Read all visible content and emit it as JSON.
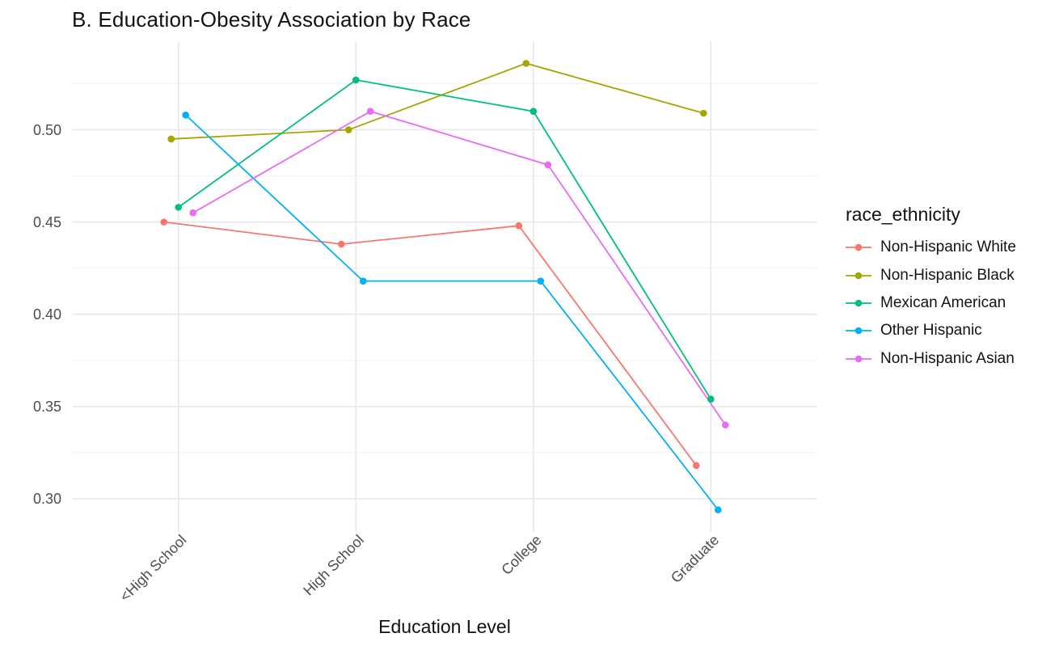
{
  "chart_data": {
    "type": "line",
    "title": "B. Education-Obesity Association by Race",
    "xlabel": "Education Level",
    "ylabel": "",
    "legend_title": "race_ethnicity",
    "legend_position": "right",
    "grid": true,
    "categories": [
      "<High School",
      "High School",
      "College",
      "Graduate"
    ],
    "series": [
      {
        "name": "Non-Hispanic White",
        "color": "#F8766D",
        "values": [
          0.45,
          0.438,
          0.448,
          0.318
        ]
      },
      {
        "name": "Non-Hispanic Black",
        "color": "#A3A500",
        "values": [
          0.495,
          0.5,
          0.536,
          0.509
        ]
      },
      {
        "name": "Mexican American",
        "color": "#00BF7D",
        "values": [
          0.458,
          0.527,
          0.51,
          0.354
        ]
      },
      {
        "name": "Other Hispanic",
        "color": "#00B0F6",
        "values": [
          0.508,
          0.418,
          0.418,
          0.294
        ]
      },
      {
        "name": "Non-Hispanic Asian",
        "color": "#E76BF3",
        "values": [
          0.455,
          0.51,
          0.481,
          0.34
        ]
      }
    ],
    "y_ticks": [
      0.3,
      0.35,
      0.4,
      0.45,
      0.5
    ],
    "y_tick_labels": [
      "0.30",
      "0.35",
      "0.40",
      "0.45",
      "0.50"
    ],
    "y_minor_ticks": [
      0.325,
      0.375,
      0.425,
      0.475,
      0.525
    ],
    "ylim": [
      0.282,
      0.548
    ],
    "style": {
      "grid_major_color": "#E7E7E7",
      "grid_minor_color": "#F0F0F0",
      "tick_text_color": "#4D4D4D",
      "background": "#FFFFFF"
    }
  }
}
